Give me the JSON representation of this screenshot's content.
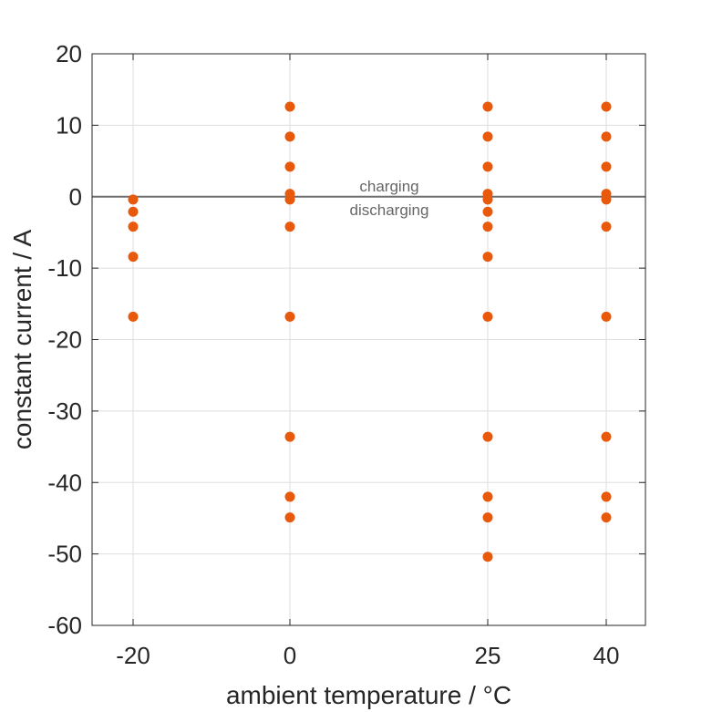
{
  "chart_data": {
    "type": "scatter",
    "title": "",
    "xlabel": "ambient temperature / °C",
    "ylabel": "constant current / A",
    "x_ticks": [
      -20,
      0,
      25,
      40
    ],
    "y_ticks": [
      20,
      10,
      0,
      -10,
      -20,
      -30,
      -40,
      -50,
      -60
    ],
    "xlim": [
      -25,
      45
    ],
    "ylim": [
      -60,
      20
    ],
    "grid": true,
    "marker_color": "#E8590C",
    "zero_line_color": "#6E6E6E",
    "annotations": [
      {
        "text": "charging"
      },
      {
        "text": "discharging"
      }
    ],
    "points": [
      {
        "x": -20,
        "y": -0.4
      },
      {
        "x": -20,
        "y": -2.1
      },
      {
        "x": -20,
        "y": -4.2
      },
      {
        "x": -20,
        "y": -8.4
      },
      {
        "x": -20,
        "y": -16.8
      },
      {
        "x": 0,
        "y": 12.6
      },
      {
        "x": 0,
        "y": 8.4
      },
      {
        "x": 0,
        "y": 4.2
      },
      {
        "x": 0,
        "y": 0.4
      },
      {
        "x": 0,
        "y": -0.4
      },
      {
        "x": 0,
        "y": -4.2
      },
      {
        "x": 0,
        "y": -16.8
      },
      {
        "x": 0,
        "y": -33.6
      },
      {
        "x": 0,
        "y": -42.0
      },
      {
        "x": 0,
        "y": -44.9
      },
      {
        "x": 25,
        "y": 12.6
      },
      {
        "x": 25,
        "y": 8.4
      },
      {
        "x": 25,
        "y": 4.2
      },
      {
        "x": 25,
        "y": 0.4
      },
      {
        "x": 25,
        "y": -0.4
      },
      {
        "x": 25,
        "y": -2.1
      },
      {
        "x": 25,
        "y": -4.2
      },
      {
        "x": 25,
        "y": -8.4
      },
      {
        "x": 25,
        "y": -16.8
      },
      {
        "x": 25,
        "y": -33.6
      },
      {
        "x": 25,
        "y": -42.0
      },
      {
        "x": 25,
        "y": -44.9
      },
      {
        "x": 25,
        "y": -50.4
      },
      {
        "x": 40,
        "y": 12.6
      },
      {
        "x": 40,
        "y": 8.4
      },
      {
        "x": 40,
        "y": 4.2
      },
      {
        "x": 40,
        "y": 0.4
      },
      {
        "x": 40,
        "y": -0.4
      },
      {
        "x": 40,
        "y": -4.2
      },
      {
        "x": 40,
        "y": -16.8
      },
      {
        "x": 40,
        "y": -33.6
      },
      {
        "x": 40,
        "y": -42.0
      },
      {
        "x": 40,
        "y": -44.9
      }
    ]
  }
}
